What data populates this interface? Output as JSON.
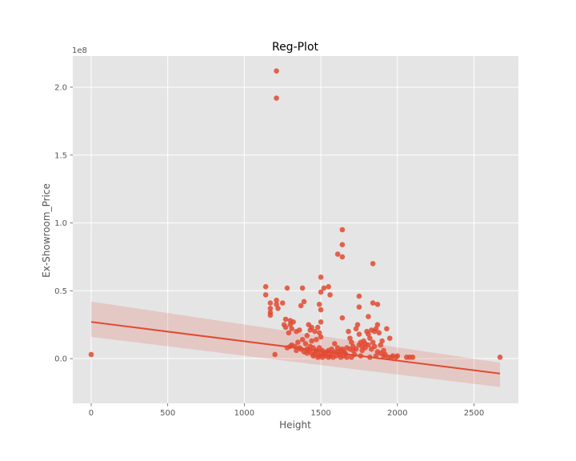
{
  "chart_data": {
    "type": "scatter",
    "title": "Reg-Plot",
    "xlabel": "Height",
    "ylabel": "Ex-Showroom_Price",
    "y_offset_label": "1e8",
    "xlim": [
      -120,
      2790
    ],
    "ylim": [
      -0.33,
      2.23
    ],
    "xticks": [
      0,
      500,
      1000,
      1500,
      2000,
      2500
    ],
    "yticks": [
      0.0,
      0.5,
      1.0,
      1.5,
      2.0
    ],
    "ytick_labels": [
      "0.0",
      "0.5",
      "1.0",
      "1.5",
      "2.0"
    ],
    "grid": true,
    "colors": {
      "points": "#e24a33",
      "line": "#e24a33",
      "band": "#e24a33",
      "background": "#e5e5e5",
      "grid": "#ffffff"
    },
    "points": [
      [
        0,
        0.03
      ],
      [
        1210,
        2.12
      ],
      [
        1210,
        1.92
      ],
      [
        1640,
        0.95
      ],
      [
        1640,
        0.84
      ],
      [
        1610,
        0.77
      ],
      [
        1640,
        0.75
      ],
      [
        1840,
        0.7
      ],
      [
        1140,
        0.53
      ],
      [
        1140,
        0.47
      ],
      [
        1170,
        0.41
      ],
      [
        1170,
        0.37
      ],
      [
        1170,
        0.34
      ],
      [
        1170,
        0.32
      ],
      [
        1210,
        0.43
      ],
      [
        1210,
        0.4
      ],
      [
        1220,
        0.37
      ],
      [
        1250,
        0.41
      ],
      [
        1280,
        0.52
      ],
      [
        1380,
        0.52
      ],
      [
        1500,
        0.6
      ],
      [
        1520,
        0.52
      ],
      [
        1500,
        0.49
      ],
      [
        1550,
        0.53
      ],
      [
        1560,
        0.47
      ],
      [
        1750,
        0.46
      ],
      [
        1370,
        0.39
      ],
      [
        1390,
        0.42
      ],
      [
        1490,
        0.4
      ],
      [
        1500,
        0.36
      ],
      [
        1750,
        0.38
      ],
      [
        1840,
        0.41
      ],
      [
        1870,
        0.4
      ],
      [
        1810,
        0.31
      ],
      [
        1640,
        0.3
      ],
      [
        1270,
        0.29
      ],
      [
        1300,
        0.28
      ],
      [
        1260,
        0.25
      ],
      [
        1300,
        0.25
      ],
      [
        1320,
        0.27
      ],
      [
        1310,
        0.22
      ],
      [
        1270,
        0.23
      ],
      [
        1290,
        0.19
      ],
      [
        1340,
        0.2
      ],
      [
        1360,
        0.21
      ],
      [
        1420,
        0.25
      ],
      [
        1440,
        0.23
      ],
      [
        1430,
        0.21
      ],
      [
        1460,
        0.2
      ],
      [
        1480,
        0.23
      ],
      [
        1500,
        0.27
      ],
      [
        1490,
        0.19
      ],
      [
        1500,
        0.16
      ],
      [
        1470,
        0.14
      ],
      [
        1440,
        0.13
      ],
      [
        1410,
        0.17
      ],
      [
        1380,
        0.14
      ],
      [
        1400,
        0.11
      ],
      [
        1360,
        0.08
      ],
      [
        1300,
        0.09
      ],
      [
        1280,
        0.08
      ],
      [
        1330,
        0.09
      ],
      [
        1340,
        0.06
      ],
      [
        1370,
        0.07
      ],
      [
        1390,
        0.05
      ],
      [
        1410,
        0.04
      ],
      [
        1420,
        0.06
      ],
      [
        1440,
        0.04
      ],
      [
        1450,
        0.02
      ],
      [
        1460,
        0.03
      ],
      [
        1470,
        0.05
      ],
      [
        1480,
        0.01
      ],
      [
        1490,
        0.02
      ],
      [
        1500,
        0.04
      ],
      [
        1510,
        0.01
      ],
      [
        1520,
        0.03
      ],
      [
        1530,
        0.02
      ],
      [
        1540,
        0.05
      ],
      [
        1550,
        0.01
      ],
      [
        1560,
        0.02
      ],
      [
        1570,
        0.04
      ],
      [
        1580,
        0.01
      ],
      [
        1590,
        0.11
      ],
      [
        1600,
        0.02
      ],
      [
        1610,
        0.05
      ],
      [
        1620,
        0.03
      ],
      [
        1630,
        0.01
      ],
      [
        1640,
        0.07
      ],
      [
        1650,
        0.02
      ],
      [
        1660,
        0.04
      ],
      [
        1670,
        0.01
      ],
      [
        1680,
        0.2
      ],
      [
        1690,
        0.15
      ],
      [
        1700,
        0.12
      ],
      [
        1710,
        0.06
      ],
      [
        1720,
        0.03
      ],
      [
        1730,
        0.22
      ],
      [
        1740,
        0.25
      ],
      [
        1750,
        0.18
      ],
      [
        1760,
        0.12
      ],
      [
        1770,
        0.09
      ],
      [
        1780,
        0.13
      ],
      [
        1790,
        0.11
      ],
      [
        1800,
        0.2
      ],
      [
        1810,
        0.18
      ],
      [
        1820,
        0.15
      ],
      [
        1830,
        0.21
      ],
      [
        1840,
        0.12
      ],
      [
        1850,
        0.2
      ],
      [
        1860,
        0.22
      ],
      [
        1870,
        0.25
      ],
      [
        1880,
        0.19
      ],
      [
        1890,
        0.1
      ],
      [
        1900,
        0.13
      ],
      [
        1910,
        0.06
      ],
      [
        1920,
        0.03
      ],
      [
        1930,
        0.22
      ],
      [
        1950,
        0.15
      ],
      [
        1960,
        0.01
      ],
      [
        1990,
        0.01
      ],
      [
        2000,
        0.02
      ],
      [
        2060,
        0.01
      ],
      [
        2080,
        0.01
      ],
      [
        2100,
        0.01
      ],
      [
        2670,
        0.01
      ],
      [
        1200,
        0.03
      ],
      [
        1310,
        0.1
      ],
      [
        1350,
        0.12
      ],
      [
        1410,
        0.07
      ],
      [
        1430,
        0.09
      ],
      [
        1450,
        0.08
      ],
      [
        1470,
        0.06
      ],
      [
        1490,
        0.08
      ],
      [
        1510,
        0.06
      ],
      [
        1530,
        0.04
      ],
      [
        1550,
        0.06
      ],
      [
        1570,
        0.07
      ],
      [
        1590,
        0.05
      ],
      [
        1610,
        0.08
      ],
      [
        1630,
        0.06
      ],
      [
        1650,
        0.05
      ],
      [
        1670,
        0.08
      ],
      [
        1690,
        0.07
      ],
      [
        1710,
        0.09
      ],
      [
        1730,
        0.07
      ],
      [
        1750,
        0.1
      ],
      [
        1770,
        0.06
      ],
      [
        1790,
        0.08
      ],
      [
        1810,
        0.1
      ],
      [
        1830,
        0.07
      ],
      [
        1850,
        0.09
      ],
      [
        1870,
        0.05
      ],
      [
        1890,
        0.04
      ],
      [
        1910,
        0.02
      ],
      [
        1700,
        0.01
      ],
      [
        1760,
        0.02
      ],
      [
        1820,
        0.01
      ],
      [
        1860,
        0.02
      ],
      [
        1940,
        0.01
      ],
      [
        1970,
        0.02
      ]
    ],
    "regression": {
      "x": [
        0,
        2670
      ],
      "y": [
        0.27,
        -0.11
      ]
    },
    "confidence_band": {
      "x": [
        0,
        2670
      ],
      "upper": [
        0.42,
        -0.03
      ],
      "lower": [
        0.16,
        -0.21
      ]
    }
  }
}
